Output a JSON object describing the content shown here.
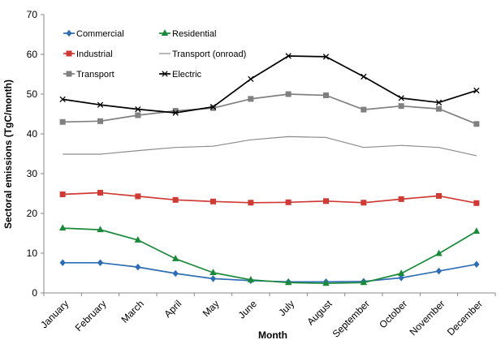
{
  "chart_data": {
    "type": "line",
    "title": "",
    "xlabel": "Month",
    "ylabel": "Sectoral emissions (TgC/month)",
    "ylim": [
      0,
      70
    ],
    "yticks": [
      0,
      10,
      20,
      30,
      40,
      50,
      60,
      70
    ],
    "grid": false,
    "legend_position": "top-left",
    "categories": [
      "January",
      "February",
      "March",
      "April",
      "May",
      "June",
      "July",
      "August",
      "September",
      "October",
      "November",
      "December"
    ],
    "series": [
      {
        "name": "Commercial",
        "color": "#2e6db4",
        "marker": "diamond",
        "values": [
          7.6,
          7.6,
          6.5,
          4.9,
          3.6,
          3.1,
          2.8,
          2.8,
          2.9,
          3.8,
          5.5,
          7.2
        ]
      },
      {
        "name": "Residential",
        "color": "#1a8a3a",
        "marker": "triangle",
        "values": [
          16.3,
          15.9,
          13.3,
          8.6,
          5.1,
          3.3,
          2.6,
          2.4,
          2.6,
          4.9,
          9.9,
          15.5
        ]
      },
      {
        "name": "Industrial",
        "color": "#d03a34",
        "marker": "square",
        "values": [
          24.8,
          25.2,
          24.3,
          23.4,
          23.0,
          22.7,
          22.8,
          23.1,
          22.7,
          23.6,
          24.4,
          22.6
        ]
      },
      {
        "name": "Transport (onroad)",
        "color": "#8c8c8c",
        "marker": "none",
        "values": [
          34.9,
          34.9,
          35.8,
          36.6,
          36.9,
          38.5,
          39.3,
          39.1,
          36.6,
          37.1,
          36.6,
          34.5
        ]
      },
      {
        "name": "Transport",
        "color": "#808080",
        "marker": "square",
        "values": [
          43.0,
          43.2,
          44.7,
          45.8,
          46.5,
          48.8,
          50.0,
          49.7,
          46.1,
          47.0,
          46.3,
          42.5
        ]
      },
      {
        "name": "Electric",
        "color": "#000000",
        "marker": "x",
        "values": [
          48.7,
          47.3,
          46.2,
          45.3,
          46.8,
          53.8,
          59.6,
          59.4,
          54.4,
          49.0,
          47.9,
          50.9
        ]
      }
    ]
  }
}
